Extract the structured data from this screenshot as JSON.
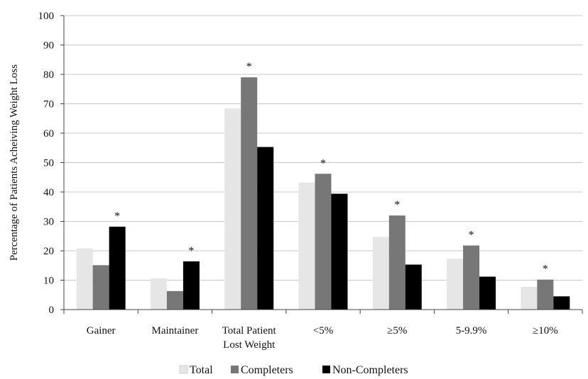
{
  "chart_data": {
    "type": "bar",
    "title": "",
    "xlabel": "",
    "ylabel": "Percentage of Patients Acheiving Weight Loss",
    "ylim": [
      0,
      100
    ],
    "yticks": [
      "0",
      "10",
      "20",
      "30",
      "40",
      "50",
      "60",
      "70",
      "80",
      "90",
      "100"
    ],
    "grid": true,
    "legend_position": "bottom",
    "categories": [
      [
        "Gainer"
      ],
      [
        "Maintainer"
      ],
      [
        "Total Patient",
        "Lost Weight"
      ],
      [
        "<5%"
      ],
      [
        "≥5%"
      ],
      [
        "5-9.9%"
      ],
      [
        "≥10%"
      ]
    ],
    "series": [
      {
        "name": "Total",
        "color": "#e6e6e6",
        "values": [
          20.8,
          10.6,
          68.4,
          43.2,
          24.7,
          17.3,
          7.7
        ]
      },
      {
        "name": "Completers",
        "color": "#777777",
        "values": [
          15.1,
          6.3,
          79.0,
          46.2,
          32.0,
          21.8,
          10.2
        ]
      },
      {
        "name": "Non-Completers",
        "color": "#000000",
        "values": [
          28.2,
          16.4,
          55.3,
          39.4,
          15.3,
          11.2,
          4.5
        ]
      }
    ],
    "significance_marker": "*",
    "significant": [
      true,
      true,
      true,
      true,
      true,
      true,
      true
    ]
  }
}
